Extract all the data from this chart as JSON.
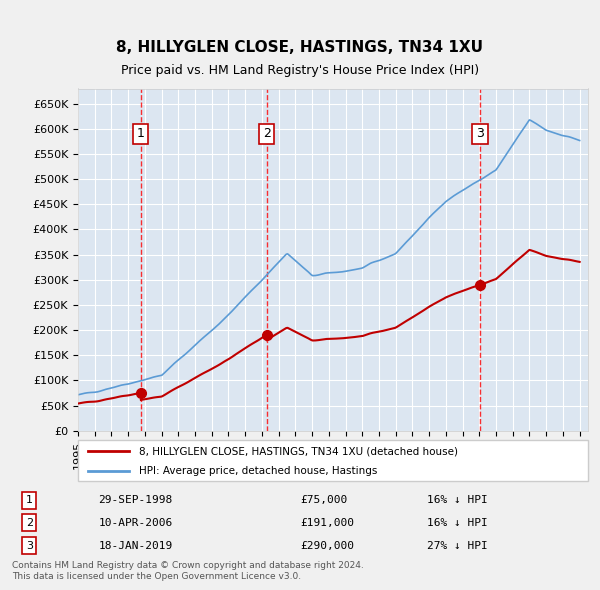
{
  "title": "8, HILLYGLEN CLOSE, HASTINGS, TN34 1XU",
  "subtitle": "Price paid vs. HM Land Registry's House Price Index (HPI)",
  "background_color": "#dce6f1",
  "plot_bg_color": "#dce6f1",
  "grid_color": "#ffffff",
  "hpi_line_color": "#5b9bd5",
  "price_line_color": "#c00000",
  "sale_marker_color": "#c00000",
  "dashed_line_color": "#ff0000",
  "ylabel_format": "£{0}K",
  "yticks": [
    0,
    50000,
    100000,
    150000,
    200000,
    250000,
    300000,
    350000,
    400000,
    450000,
    500000,
    550000,
    600000,
    650000
  ],
  "xlim_start": 1995.0,
  "xlim_end": 2025.5,
  "ylim_min": 0,
  "ylim_max": 680000,
  "sales": [
    {
      "num": 1,
      "date_label": "29-SEP-1998",
      "year": 1998.75,
      "price": 75000,
      "pct": "16%",
      "dir": "↓"
    },
    {
      "num": 2,
      "date_label": "10-APR-2006",
      "year": 2006.28,
      "price": 191000,
      "pct": "16%",
      "dir": "↓"
    },
    {
      "num": 3,
      "date_label": "18-JAN-2019",
      "year": 2019.05,
      "price": 290000,
      "pct": "27%",
      "dir": "↓"
    }
  ],
  "legend_entries": [
    "8, HILLYGLEN CLOSE, HASTINGS, TN34 1XU (detached house)",
    "HPI: Average price, detached house, Hastings"
  ],
  "footnote_line1": "Contains HM Land Registry data © Crown copyright and database right 2024.",
  "footnote_line2": "This data is licensed under the Open Government Licence v3.0."
}
